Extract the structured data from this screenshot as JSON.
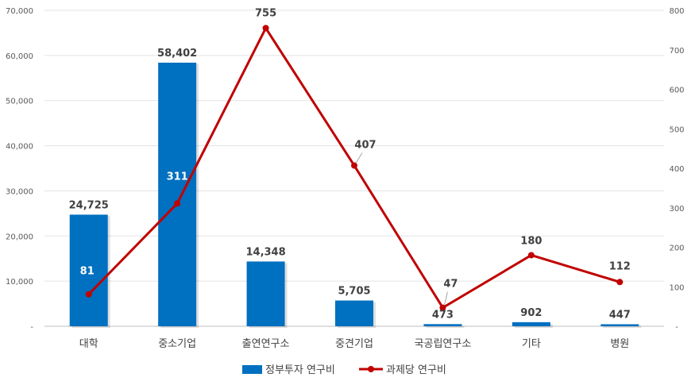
{
  "chart_data": {
    "type": "bar",
    "categories": [
      "대학",
      "중소기업",
      "출연연구소",
      "중견기업",
      "국공립연구소",
      "기타",
      "병원"
    ],
    "series": [
      {
        "name": "정부투자 연구비",
        "type": "bar",
        "axis": "left",
        "color": "#0070C0",
        "values": [
          24725,
          58402,
          14348,
          5705,
          473,
          902,
          447
        ],
        "labels": [
          "24,725",
          "58,402",
          "14,348",
          "5,705",
          "473",
          "902",
          "447"
        ]
      },
      {
        "name": "과제당 연구비",
        "type": "line",
        "axis": "right",
        "color": "#C00000",
        "values": [
          81,
          311,
          755,
          407,
          47,
          180,
          112
        ],
        "labels": [
          "81",
          "311",
          "755",
          "407",
          "47",
          "180",
          "112"
        ]
      }
    ],
    "y_left": {
      "ylim": [
        0,
        70000
      ],
      "ticks": [
        0,
        10000,
        20000,
        30000,
        40000,
        50000,
        60000,
        70000
      ],
      "tick_labels": [
        "-",
        "10,000",
        "20,000",
        "30,000",
        "40,000",
        "50,000",
        "60,000",
        "70,000"
      ]
    },
    "y_right": {
      "ylim": [
        0,
        800
      ],
      "ticks": [
        0,
        100,
        200,
        300,
        400,
        500,
        600,
        700,
        800
      ],
      "tick_labels": [
        "-",
        "100",
        "200",
        "300",
        "400",
        "500",
        "600",
        "700",
        "800"
      ]
    },
    "grid": true,
    "legend": "bottom"
  }
}
